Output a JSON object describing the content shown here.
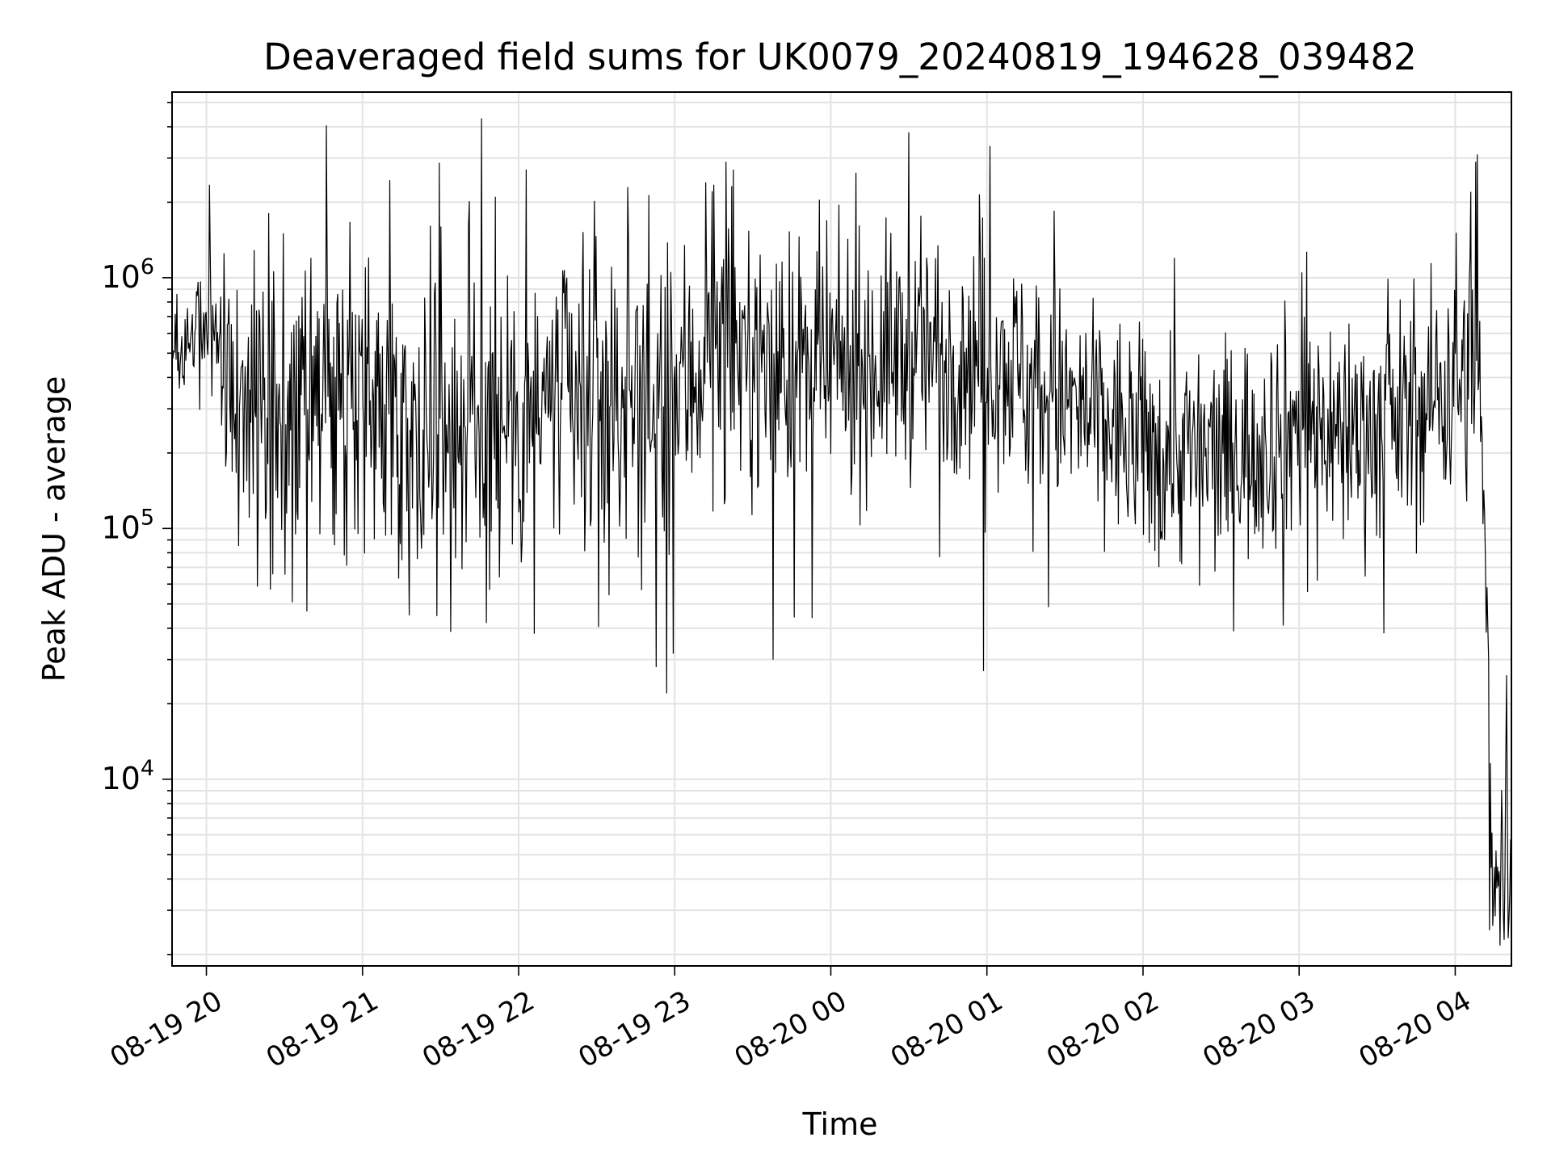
{
  "chart_data": {
    "type": "line",
    "title": "Deaveraged field sums for UK0079_20240819_194628_039482",
    "xlabel": "Time",
    "ylabel": "Peak ADU - average",
    "yscale": "log",
    "ylim": [
      1800,
      5500000
    ],
    "xlim_hours": [
      19.78,
      28.36
    ],
    "x_tick_labels": [
      "08-19 20",
      "08-19 21",
      "08-19 22",
      "08-19 23",
      "08-20 00",
      "08-20 01",
      "08-20 02",
      "08-20 03",
      "08-20 04"
    ],
    "x_tick_hours": [
      20,
      21,
      22,
      23,
      24,
      25,
      26,
      27,
      28
    ],
    "y_ticks": [
      {
        "value": 10000,
        "base": "10",
        "exp": "4"
      },
      {
        "value": 100000,
        "base": "10",
        "exp": "5"
      },
      {
        "value": 1000000,
        "base": "10",
        "exp": "6"
      }
    ],
    "grid": true,
    "line_color": "#000000",
    "series": [
      {
        "name": "Peak ADU - average",
        "envelope_hours": [
          19.78,
          20.0,
          20.05,
          20.2,
          20.5,
          21.0,
          21.5,
          22.0,
          22.5,
          23.0,
          23.3,
          23.6,
          24.0,
          24.5,
          25.0,
          25.5,
          26.0,
          26.5,
          27.0,
          27.5,
          27.8,
          28.0,
          28.15,
          28.18,
          28.2,
          28.23,
          28.27,
          28.36
        ],
        "envelope_median": [
          450000,
          700000,
          600000,
          280000,
          250000,
          330000,
          270000,
          300000,
          330000,
          320000,
          550000,
          450000,
          420000,
          500000,
          500000,
          310000,
          210000,
          190000,
          260000,
          250000,
          300000,
          420000,
          400000,
          120000,
          40000,
          6000,
          4500,
          5500
        ],
        "envelope_spread": [
          0.2,
          0.2,
          0.3,
          0.55,
          0.6,
          0.6,
          0.6,
          0.6,
          0.62,
          0.6,
          0.5,
          0.5,
          0.5,
          0.48,
          0.45,
          0.45,
          0.45,
          0.45,
          0.45,
          0.45,
          0.45,
          0.55,
          0.5,
          0.3,
          0.25,
          0.35,
          0.4,
          0.45
        ],
        "samples": 1650,
        "spikes": [
          {
            "x": 20.02,
            "y": 2350000
          },
          {
            "x": 21.02,
            "y": 1100000
          },
          {
            "x": 21.5,
            "y": 1600000
          },
          {
            "x": 21.85,
            "y": 2100000
          },
          {
            "x": 22.05,
            "y": 2700000
          },
          {
            "x": 22.1,
            "y": 38000
          },
          {
            "x": 22.7,
            "y": 2300000
          },
          {
            "x": 22.88,
            "y": 28000
          },
          {
            "x": 22.95,
            "y": 22000
          },
          {
            "x": 23.2,
            "y": 2400000
          },
          {
            "x": 23.25,
            "y": 2350000
          },
          {
            "x": 23.63,
            "y": 30000
          },
          {
            "x": 24.5,
            "y": 3800000
          },
          {
            "x": 24.95,
            "y": 2150000
          },
          {
            "x": 24.98,
            "y": 27000
          },
          {
            "x": 25.43,
            "y": 1850000
          },
          {
            "x": 26.2,
            "y": 1200000
          },
          {
            "x": 26.9,
            "y": 41000
          },
          {
            "x": 27.02,
            "y": 1050000
          },
          {
            "x": 28.13,
            "y": 2900000
          },
          {
            "x": 28.1,
            "y": 2200000
          },
          {
            "x": 28.14,
            "y": 3100000
          },
          {
            "x": 28.22,
            "y": 2500
          },
          {
            "x": 28.24,
            "y": 2600
          },
          {
            "x": 28.33,
            "y": 26000
          },
          {
            "x": 28.35,
            "y": 3500
          }
        ]
      }
    ]
  }
}
